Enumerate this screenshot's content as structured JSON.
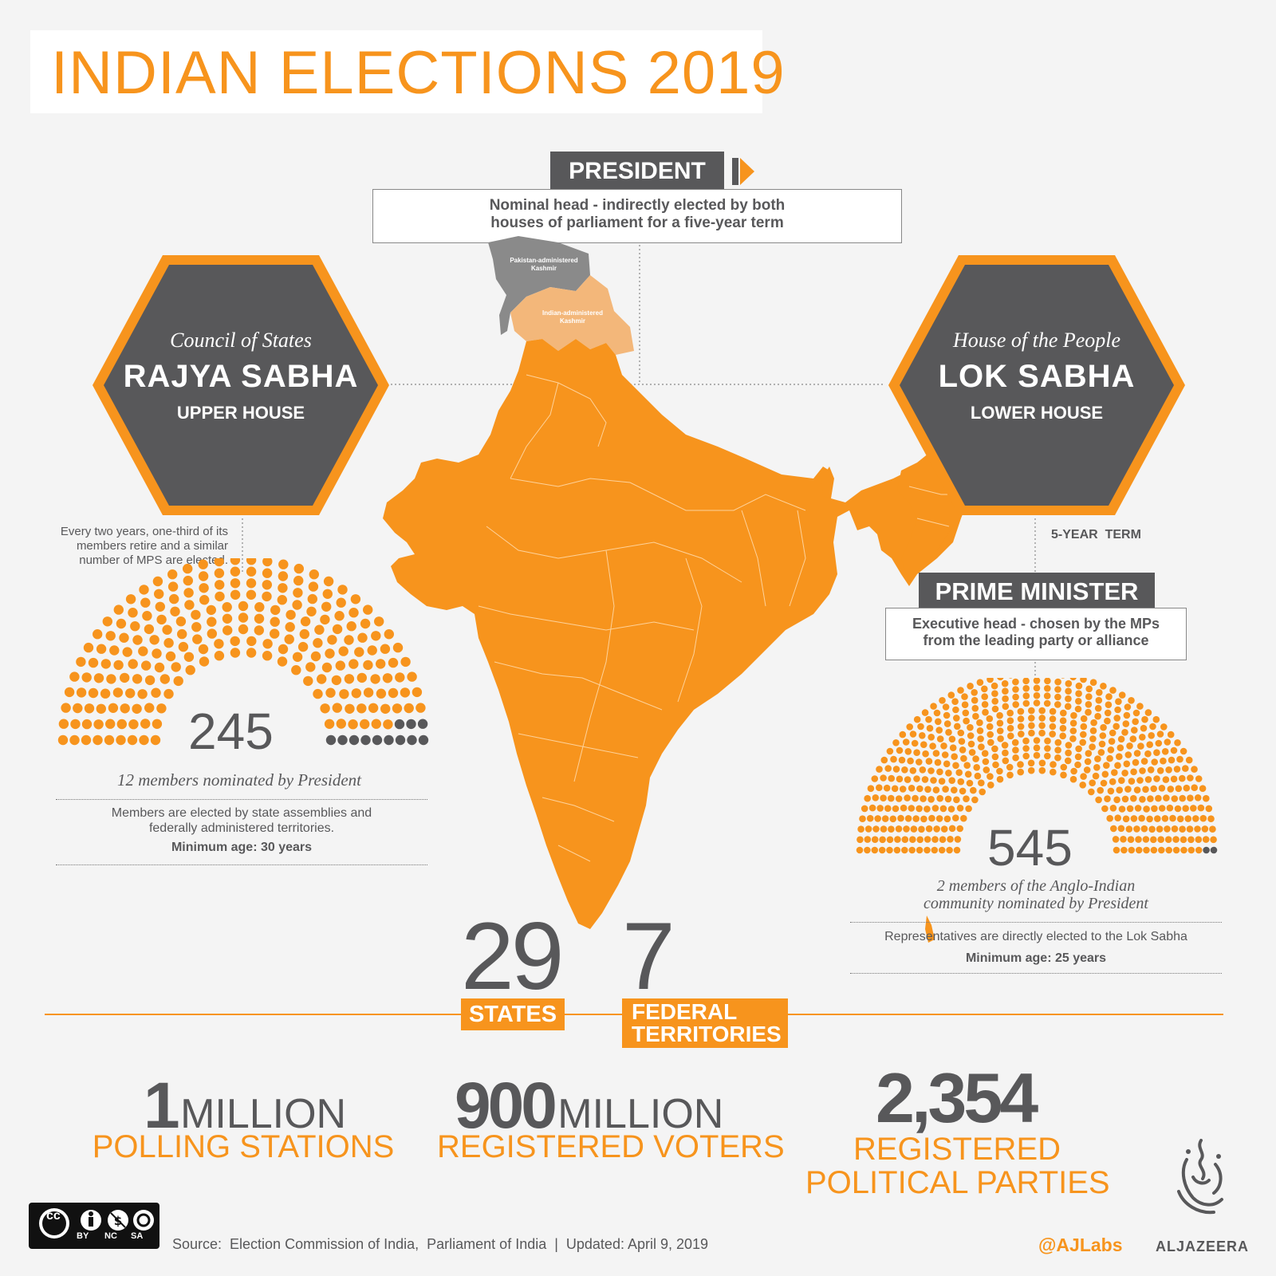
{
  "title": "INDIAN ELECTIONS 2019",
  "president": {
    "label": "PRESIDENT",
    "desc_line1": "Nominal head - indirectly elected by both",
    "desc_line2": "houses of parliament for a five-year term"
  },
  "map": {
    "pak_kashmir_line1": "Pakistan-administered",
    "pak_kashmir_line2": "Kashmir",
    "ind_kashmir_line1": "Indian-administered",
    "ind_kashmir_line2": "Kashmir",
    "fill_color": "#f7941d",
    "kashmir_color": "#f3b77a",
    "pak_color": "#8a8a8a"
  },
  "rajya": {
    "subtitle": "Council of States",
    "name": "RAJYA SABHA",
    "house": "UPPER HOUSE",
    "term_line1": "Every two years, one-third of its",
    "term_line2": "members retire and a similar",
    "term_line3": "number of MPS are elected.",
    "seats": 245,
    "seats_label": "245",
    "nominated": 12,
    "nominated_label": "12 members nominated by President",
    "election_line1": "Members are elected by state assemblies and",
    "election_line2": "federally administered territories.",
    "min_age": "Minimum age: 30 years"
  },
  "lok": {
    "subtitle": "House of the People",
    "name": "LOK SABHA",
    "house": "LOWER HOUSE",
    "term": "5-YEAR  TERM",
    "seats": 545,
    "seats_label": "545",
    "nominated": 2,
    "nominated_line1": "2 members of the  Anglo-Indian",
    "nominated_line2": "community nominated by President",
    "election": "Representatives are directly elected to the Lok Sabha",
    "min_age": "Minimum age: 25 years"
  },
  "prime_minister": {
    "label": "PRIME MINISTER",
    "desc_line1": "Executive head - chosen by the MPs",
    "desc_line2": "from the leading party or alliance"
  },
  "states": {
    "value": "29",
    "label": "STATES"
  },
  "territories": {
    "value": "7",
    "label_line1": "FEDERAL",
    "label_line2": "TERRITORIES"
  },
  "stats": [
    {
      "number": "1",
      "unit": "MILLION",
      "label_line1": "POLLING STATIONS",
      "label_line2": ""
    },
    {
      "number": "900",
      "unit": "MILLION",
      "label_line1": "REGISTERED VOTERS",
      "label_line2": ""
    },
    {
      "number": "2,354",
      "unit": "",
      "label_line1": "REGISTERED",
      "label_line2": "POLITICAL PARTIES"
    }
  ],
  "license": {
    "badge": "cc",
    "by": "BY",
    "nc": "NC",
    "sa": "SA"
  },
  "source": "Source:  Election Commission of India,  Parliament of India  |  Updated: April 9, 2019",
  "handle": "@AJLabs",
  "brand": "ALJAZEERA",
  "colors": {
    "orange": "#f7941d",
    "dark": "#58585a",
    "seat_nominated": "#58585a"
  }
}
